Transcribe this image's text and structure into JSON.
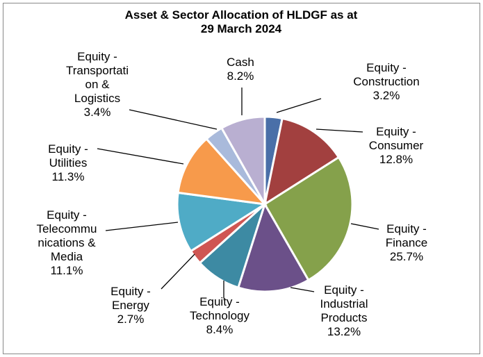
{
  "chart_data": {
    "type": "pie",
    "title": "Asset & Sector Allocation of HLDGF as at\n29 March 2024",
    "categories": [
      "Equity -\nConstruction",
      "Equity -\nConsumer",
      "Equity -\nFinance",
      "Equity -\nIndustrial\nProducts",
      "Equity -\nTechnology",
      "Equity -\nEnergy",
      "Equity -\nTelecommu\nnications &\nMedia",
      "Equity -\nUtilities",
      "Equity -\nTransportati\non &\nLogistics",
      "Cash"
    ],
    "values": [
      3.2,
      12.8,
      25.7,
      13.2,
      8.4,
      2.7,
      11.1,
      11.3,
      3.4,
      8.2
    ],
    "value_labels": [
      "3.2%",
      "12.8%",
      "25.7%",
      "13.2%",
      "8.4%",
      "2.7%",
      "11.1%",
      "11.3%",
      "3.4%",
      "8.2%"
    ],
    "colors": [
      "#4a6fa8",
      "#a2403f",
      "#85a14b",
      "#6b5089",
      "#3d8aa3",
      "#cf5653",
      "#4fabc6",
      "#f79a4b",
      "#a9badb",
      "#b9afd1"
    ]
  }
}
